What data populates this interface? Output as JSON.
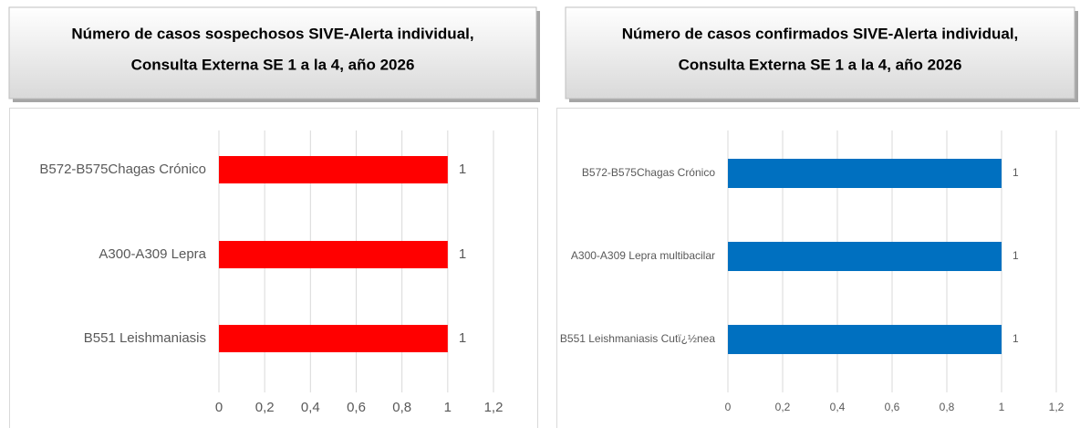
{
  "chart_data": [
    {
      "type": "barh",
      "title": [
        "Número de casos sospechosos SIVE-Alerta individual,",
        "Consulta Externa SE 1 a la 4, año 2026"
      ],
      "categories": [
        "B572-B575Chagas Crónico",
        "A300-A309 Lepra",
        "B551 Leishmaniasis"
      ],
      "values": [
        1,
        1,
        1
      ],
      "color": "#ff0000",
      "xlim": [
        0,
        1.2
      ],
      "xticks": [
        0,
        {
          "value": 0.2,
          "label": "0,2"
        },
        {
          "value": 0.4,
          "label": "0,4"
        },
        {
          "value": 0.6,
          "label": "0,6"
        },
        {
          "value": 0.8,
          "label": "0,8"
        },
        1,
        {
          "value": 1.2,
          "label": "1,2"
        }
      ],
      "grid": true
    },
    {
      "type": "barh",
      "title": [
        "Número de casos confirmados SIVE-Alerta individual,",
        "Consulta Externa SE 1 a la 4, año 2026"
      ],
      "categories": [
        "B572-B575Chagas Crónico",
        "A300-A309 Lepra multibacilar",
        "B551 Leishmaniasis Cutï¿½nea"
      ],
      "values": [
        1,
        1,
        1
      ],
      "color": "#0070c0",
      "xlim": [
        0,
        1.2
      ],
      "xticks": [
        0,
        {
          "value": 0.2,
          "label": "0,2"
        },
        {
          "value": 0.4,
          "label": "0,4"
        },
        {
          "value": 0.6,
          "label": "0,6"
        },
        {
          "value": 0.8,
          "label": "0,8"
        },
        1,
        {
          "value": 1.2,
          "label": "1,2"
        }
      ],
      "grid": true
    }
  ]
}
